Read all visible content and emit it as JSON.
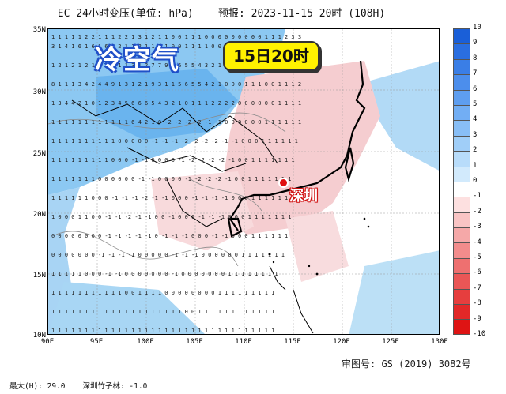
{
  "title": "EC 24小时变压(单位: hPa)    预报: 2023-11-15 20时 (108H)",
  "banner": "冷空气",
  "badge": "15日20时",
  "city_label": "深圳",
  "approval": "审图号: GS (2019) 3082号",
  "footer": {
    "max": "最大(H): 29.0",
    "station": "深圳竹子林: -1.0"
  },
  "y_axis": [
    "35N",
    "30N",
    "25N",
    "20N",
    "15N",
    "10N"
  ],
  "x_axis": [
    "90E",
    "95E",
    "100E",
    "105E",
    "110E",
    "115E",
    "120E",
    "125E",
    "130E"
  ],
  "colorbar": {
    "labels": [
      "10",
      "9",
      "8",
      "7",
      "6",
      "5",
      "4",
      "3",
      "2",
      "1",
      "0",
      "-1",
      "-2",
      "-3",
      "-4",
      "-5",
      "-6",
      "-7",
      "-8",
      "-9",
      "-10"
    ],
    "colors": [
      "#1a5fd8",
      "#2a6ee0",
      "#3a7ee6",
      "#4c8eec",
      "#5e9ef0",
      "#72aef4",
      "#88bef6",
      "#a0cef8",
      "#b8dcfa",
      "#d2eafc",
      "#ffffff",
      "#fde0e0",
      "#f9c4c4",
      "#f5a8a8",
      "#f28c8c",
      "#ee7070",
      "#ea5656",
      "#e63e3e",
      "#e22828",
      "#de1414",
      "#da0000"
    ]
  },
  "colors": {
    "cold": "#7ec4f2",
    "warm": "#f5cdd0",
    "map_bg": "#ffffff"
  }
}
